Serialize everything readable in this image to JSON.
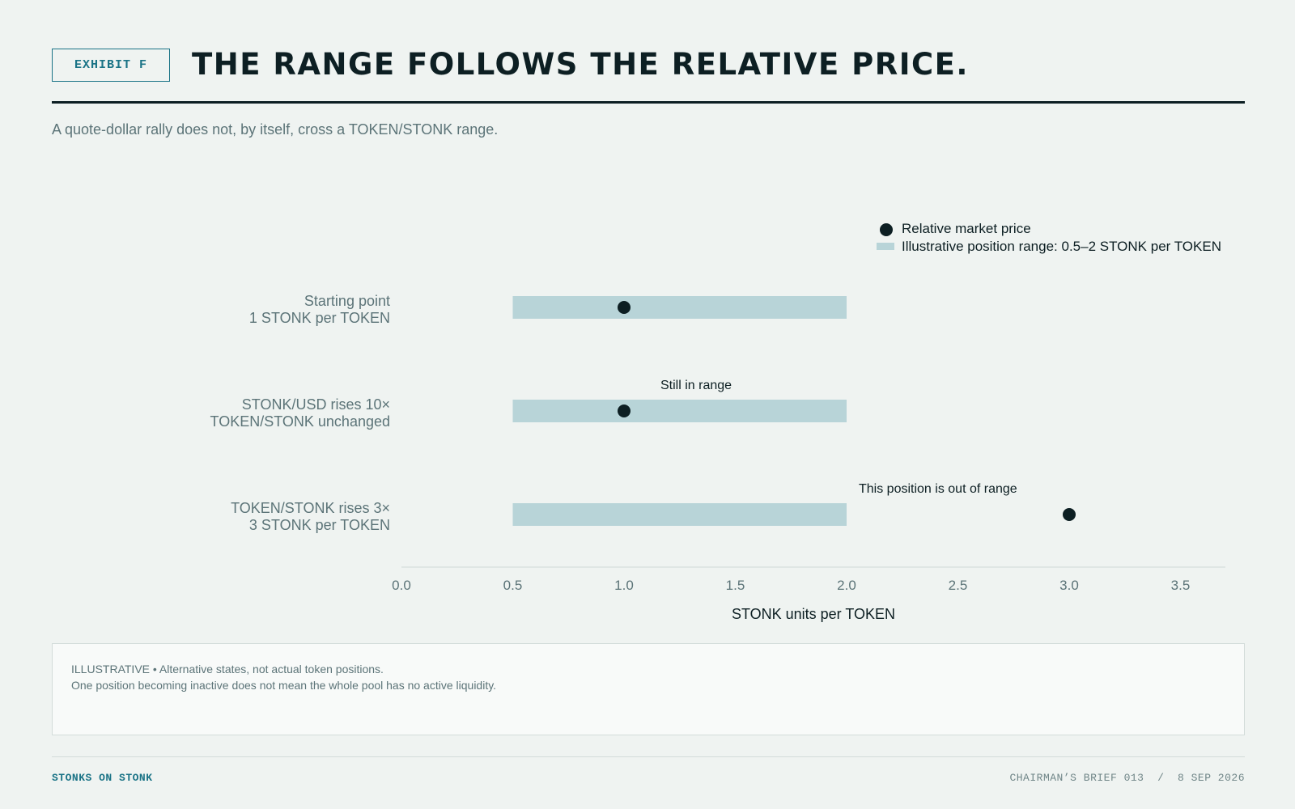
{
  "header": {
    "exhibit": "EXHIBIT F",
    "title": "THE RANGE FOLLOWS THE RELATIVE PRICE.",
    "subtitle": "A quote-dollar rally does not, by itself, cross a TOKEN/STONK range."
  },
  "colors": {
    "ink": "#0d1f23",
    "accent": "#1a7386",
    "range_fill": "#b8d4d8",
    "muted_text": "#5c7478"
  },
  "chart_data": {
    "type": "range-dot",
    "xlabel": "STONK units per TOKEN",
    "xlim": [
      0,
      3.7
    ],
    "xticks": [
      0.0,
      0.5,
      1.0,
      1.5,
      2.0,
      2.5,
      3.0,
      3.5
    ],
    "grid": false,
    "legend": {
      "placement": "top-right",
      "items": [
        {
          "marker": "dot",
          "label": "Relative market price"
        },
        {
          "marker": "bar",
          "label": "Illustrative position range: 0.5–2 STONK per TOKEN"
        }
      ]
    },
    "rows": [
      {
        "label": [
          "Starting point",
          "1 STONK per TOKEN"
        ],
        "range": [
          0.5,
          2.0
        ],
        "price": 1.0,
        "annotation": ""
      },
      {
        "label": [
          "STONK/USD rises 10×",
          "TOKEN/STONK unchanged"
        ],
        "range": [
          0.5,
          2.0
        ],
        "price": 1.0,
        "annotation": "Still in range"
      },
      {
        "label": [
          "TOKEN/STONK rises 3×",
          "3 STONK per TOKEN"
        ],
        "range": [
          0.5,
          2.0
        ],
        "price": 3.0,
        "annotation": "This position is out of range"
      }
    ]
  },
  "notes": {
    "line1": "ILLUSTRATIVE • Alternative states, not actual token positions.",
    "line2": "One position becoming inactive does not mean the whole pool has no active liquidity."
  },
  "footer": {
    "brand": "STONKS ON STONK",
    "meta": "CHAIRMAN’S BRIEF 013  /  8 SEP 2026"
  }
}
